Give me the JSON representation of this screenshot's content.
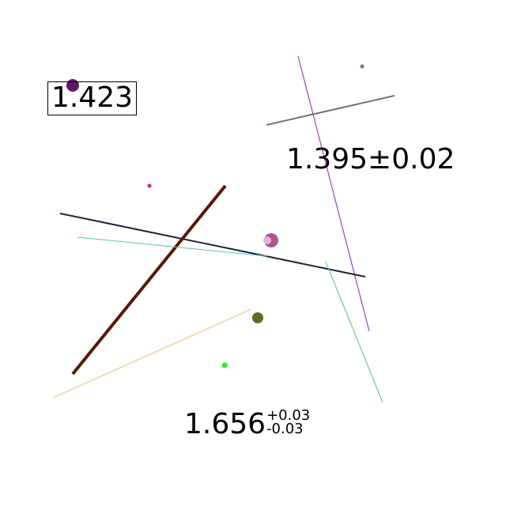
{
  "labels": {
    "boxed": "1.423",
    "plus_minus": "1.395±0.02",
    "asym_value": "1.656",
    "asym_upper": "+0.03",
    "asym_lower": "-0.03"
  },
  "colors": {
    "background": "#ffffff",
    "text": "#000000",
    "violet_line": "#9a3fd6",
    "gray_line": "#7e6e76",
    "navy_line": "#1c2438",
    "brown_line": "#5a1608",
    "teal_line": "#56c8a8",
    "tan_line": "#f0dcb4",
    "green_line": "#4ec294",
    "purple_dot": "#5e1866",
    "brown_dot": "#9a6a60",
    "pink_dot": "#e0187e",
    "mauve_dot": "#a85898",
    "light_pink_dot": "#e2b6cc",
    "olive_dot": "#68682a",
    "green_dot": "#22ee22"
  }
}
